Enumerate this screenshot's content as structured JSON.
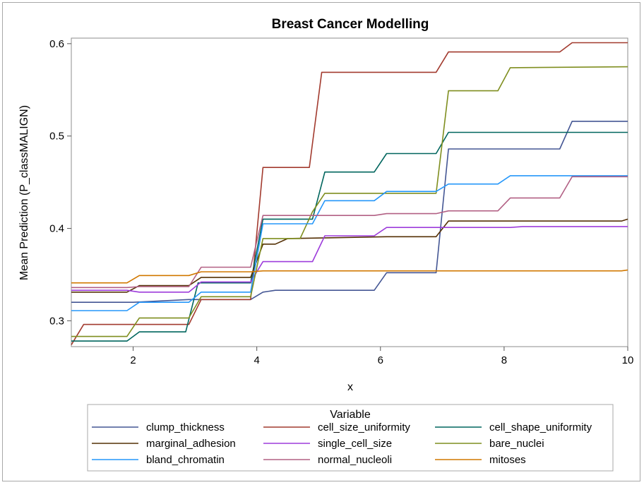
{
  "chart_data": {
    "type": "line",
    "title": "Breast Cancer Modelling",
    "xlabel": "x",
    "ylabel": "Mean Prediction (P_classMALIGN)",
    "xlim": [
      1,
      10
    ],
    "ylim": [
      0.272,
      0.606
    ],
    "xticks": [
      2,
      4,
      6,
      8,
      10
    ],
    "yticks": [
      0.3,
      0.4,
      0.5,
      0.6
    ],
    "xtick_labels": [
      "2",
      "4",
      "6",
      "8",
      "10"
    ],
    "ytick_labels": [
      "0.3",
      "0.4",
      "0.5",
      "0.6"
    ],
    "grid": false,
    "legend": {
      "title": "Variable",
      "placement": "bottom",
      "columns": 3
    },
    "series": [
      {
        "name": "clump_thickness",
        "color": "#445694",
        "x": [
          1,
          2,
          2.9,
          3.9,
          4.1,
          4.3,
          5.9,
          6.1,
          6.9,
          7.1,
          8.9,
          9.1,
          10
        ],
        "y": [
          0.32,
          0.32,
          0.323,
          0.323,
          0.331,
          0.333,
          0.333,
          0.352,
          0.352,
          0.486,
          0.486,
          0.516,
          0.516
        ]
      },
      {
        "name": "cell_size_uniformity",
        "color": "#A23A2E",
        "x": [
          1,
          1.2,
          2.9,
          3.1,
          3.9,
          4.1,
          4.85,
          5.05,
          6.9,
          7.1,
          8.9,
          9.1,
          10
        ],
        "y": [
          0.274,
          0.296,
          0.296,
          0.323,
          0.323,
          0.466,
          0.466,
          0.569,
          0.569,
          0.591,
          0.591,
          0.601,
          0.601
        ]
      },
      {
        "name": "cell_shape_uniformity",
        "color": "#01665E",
        "x": [
          1,
          1.9,
          2.1,
          2.85,
          3.05,
          3.9,
          4.1,
          4.9,
          5.1,
          5.9,
          6.1,
          6.9,
          7.1,
          10
        ],
        "y": [
          0.278,
          0.278,
          0.288,
          0.288,
          0.341,
          0.341,
          0.41,
          0.41,
          0.461,
          0.461,
          0.481,
          0.481,
          0.504,
          0.504
        ]
      },
      {
        "name": "marginal_adhesion",
        "color": "#543005",
        "x": [
          1,
          1.9,
          2.1,
          2.9,
          3.1,
          3.9,
          4.1,
          4.3,
          4.5,
          6.1,
          6.9,
          7.1,
          9.9,
          10
        ],
        "y": [
          0.331,
          0.331,
          0.338,
          0.338,
          0.347,
          0.347,
          0.383,
          0.383,
          0.389,
          0.391,
          0.391,
          0.408,
          0.408,
          0.41
        ]
      },
      {
        "name": "single_cell_size",
        "color": "#9D3CDB",
        "x": [
          1,
          1.9,
          2.1,
          2.9,
          3.1,
          3.9,
          4.1,
          4.9,
          5.1,
          5.9,
          6.1,
          8.1,
          8.3,
          10
        ],
        "y": [
          0.333,
          0.333,
          0.331,
          0.331,
          0.342,
          0.342,
          0.364,
          0.364,
          0.392,
          0.392,
          0.401,
          0.401,
          0.402,
          0.402
        ]
      },
      {
        "name": "bare_nuclei",
        "color": "#7F8E1F",
        "x": [
          1,
          1.9,
          2.1,
          2.9,
          3.1,
          3.9,
          4.1,
          4.7,
          4.9,
          5.1,
          6.9,
          7.1,
          7.9,
          8.1,
          10
        ],
        "y": [
          0.283,
          0.283,
          0.303,
          0.303,
          0.326,
          0.326,
          0.389,
          0.389,
          0.418,
          0.438,
          0.438,
          0.549,
          0.549,
          0.574,
          0.575
        ]
      },
      {
        "name": "bland_chromatin",
        "color": "#2597FA",
        "x": [
          1,
          1.9,
          2.1,
          2.9,
          3.1,
          3.9,
          4.1,
          4.9,
          5.1,
          5.9,
          6.1,
          6.9,
          7.1,
          7.9,
          8.1,
          10
        ],
        "y": [
          0.311,
          0.311,
          0.32,
          0.32,
          0.331,
          0.331,
          0.405,
          0.405,
          0.43,
          0.43,
          0.44,
          0.44,
          0.448,
          0.448,
          0.457,
          0.457
        ]
      },
      {
        "name": "normal_nucleoli",
        "color": "#B26084",
        "x": [
          1,
          1.9,
          2.1,
          2.9,
          3.1,
          3.9,
          4.1,
          5.9,
          6.1,
          6.9,
          7.1,
          7.9,
          8.1,
          8.9,
          9.1,
          10
        ],
        "y": [
          0.336,
          0.336,
          0.337,
          0.337,
          0.358,
          0.358,
          0.414,
          0.414,
          0.416,
          0.416,
          0.419,
          0.419,
          0.433,
          0.433,
          0.456,
          0.456
        ]
      },
      {
        "name": "mitoses",
        "color": "#D17800",
        "x": [
          1,
          1.9,
          2.1,
          2.9,
          3.1,
          3.9,
          4.1,
          9.9,
          10
        ],
        "y": [
          0.341,
          0.341,
          0.349,
          0.349,
          0.353,
          0.353,
          0.354,
          0.354,
          0.355
        ]
      }
    ]
  }
}
